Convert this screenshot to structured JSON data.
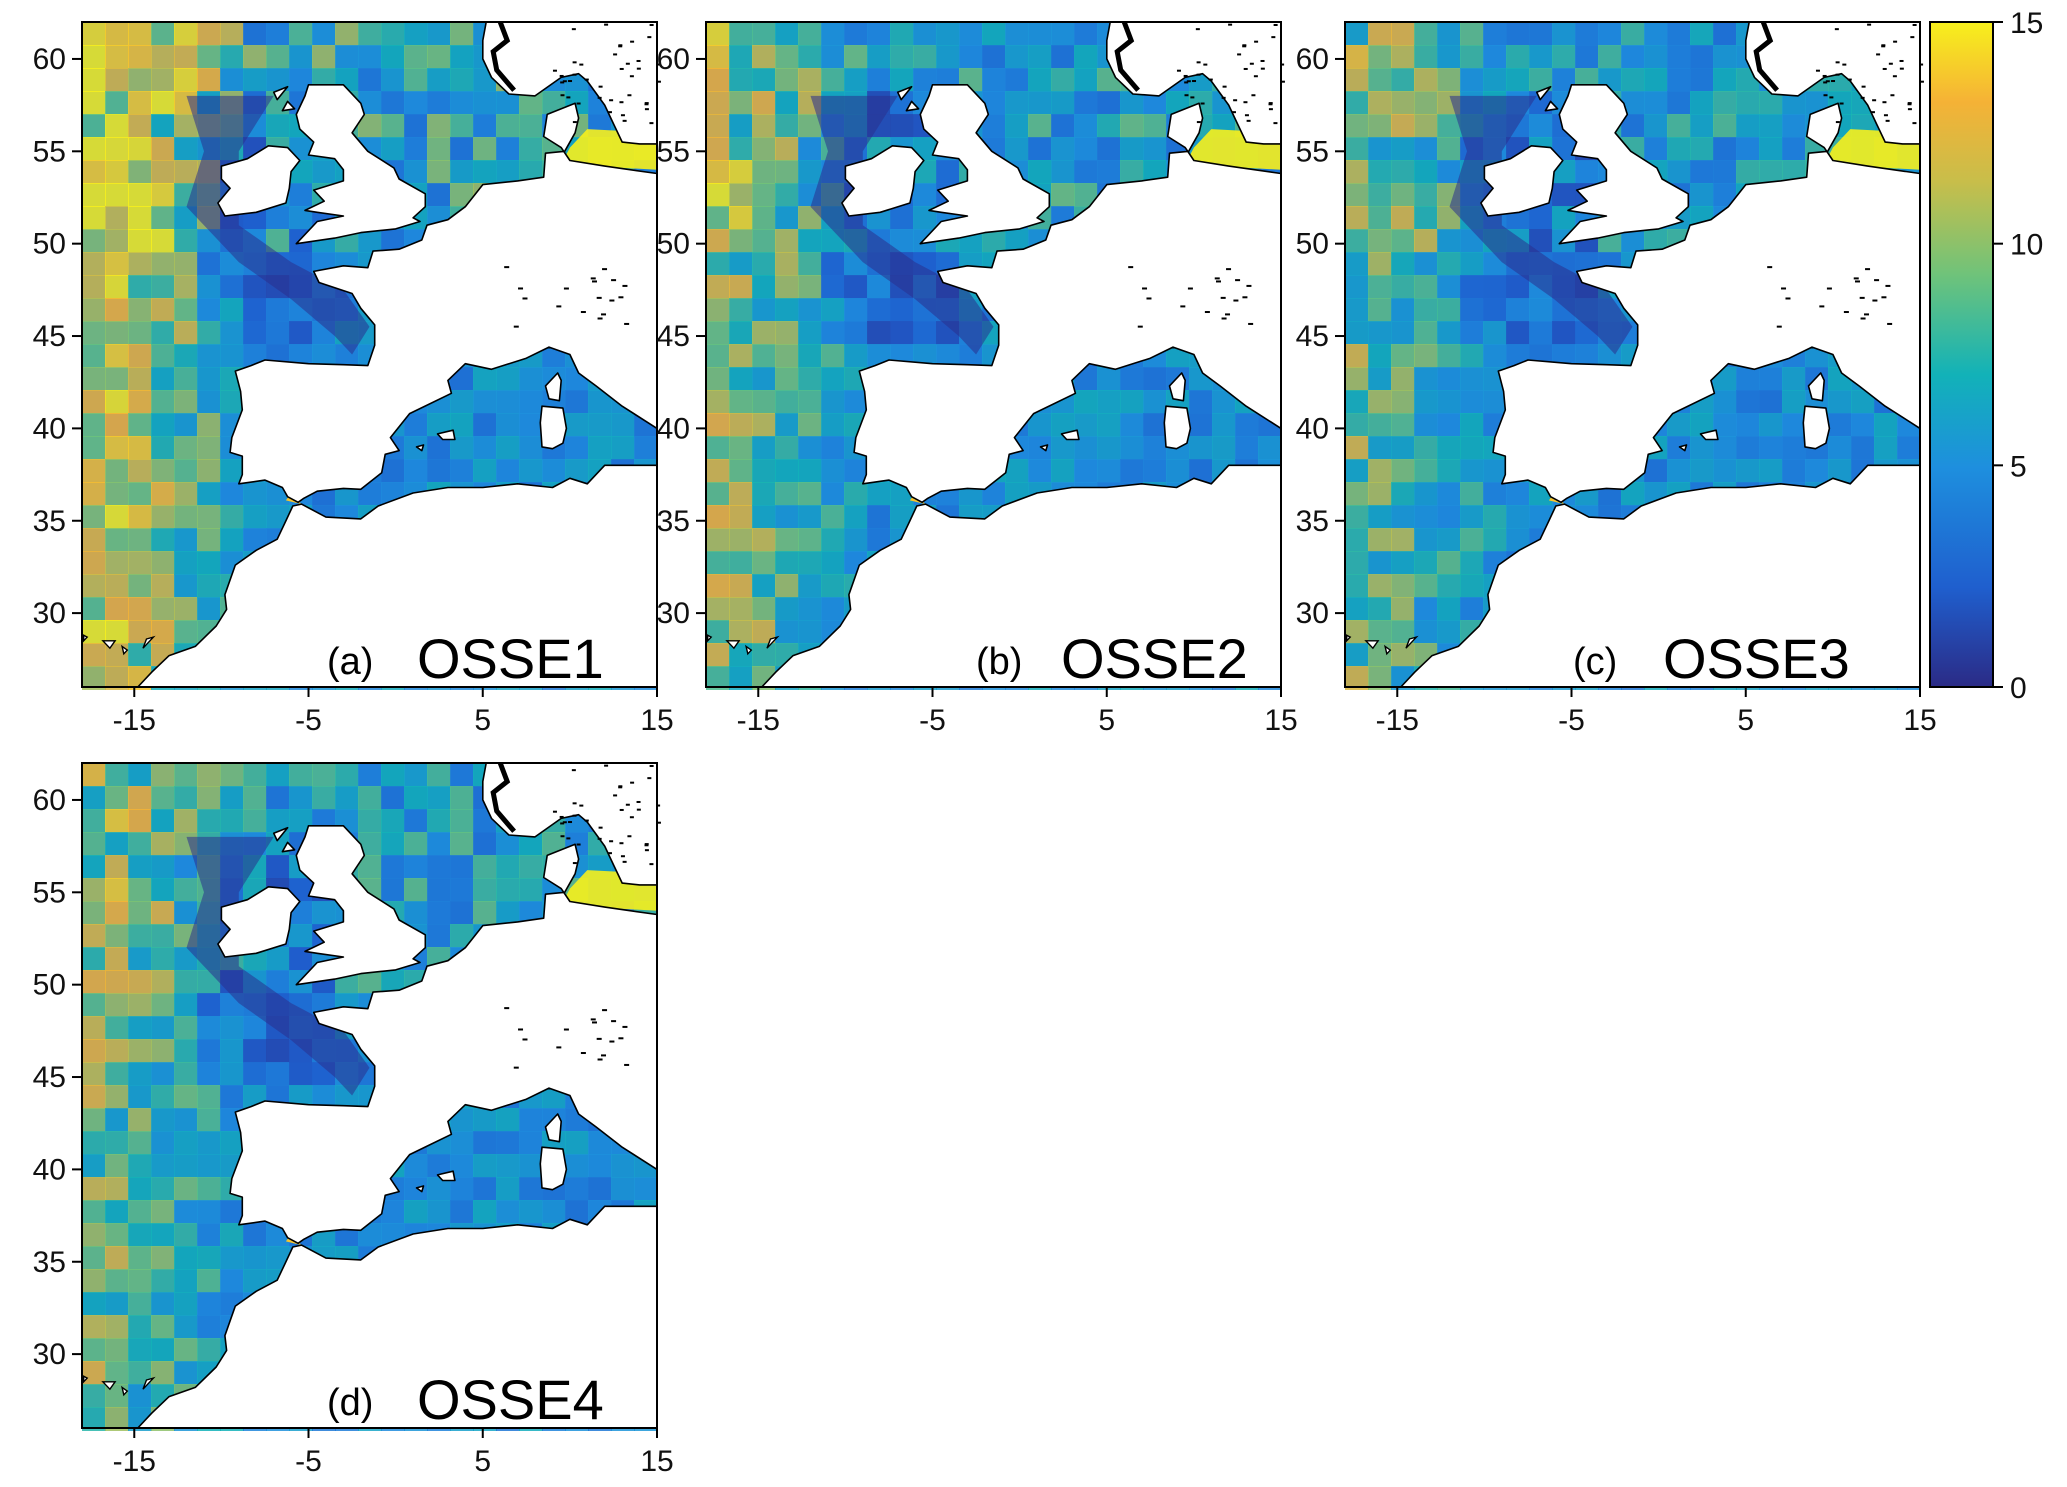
{
  "chart_data": {
    "type": "heatmap",
    "description_note": "",
    "x_axis": {
      "ticks": [
        -15,
        -5,
        5,
        15
      ],
      "range": [
        -18,
        15
      ]
    },
    "y_axis": {
      "ticks": [
        30,
        35,
        40,
        45,
        50,
        55,
        60
      ],
      "range": [
        26,
        62
      ]
    },
    "colorbar": {
      "ticks": [
        0,
        5,
        10,
        15
      ],
      "range": [
        0,
        15
      ],
      "colors": [
        "#2b2b86",
        "#1f5fce",
        "#1e8fde",
        "#12b2b8",
        "#6fc37a",
        "#c8be4a",
        "#f5b236",
        "#f7f01c"
      ]
    },
    "panels": [
      {
        "letter": "(a)",
        "name": "OSSE1",
        "intensity": 1.0
      },
      {
        "letter": "(b)",
        "name": "OSSE2",
        "intensity": 0.62
      },
      {
        "letter": "(c)",
        "name": "OSSE3",
        "intensity": 0.48
      },
      {
        "letter": "(d)",
        "name": "OSSE4",
        "intensity": 0.55
      }
    ]
  },
  "colors": {
    "land": "#ffffff",
    "coast": "#000000",
    "shelf": "#2a2f8e",
    "ocean_base": "#1f62cf"
  }
}
